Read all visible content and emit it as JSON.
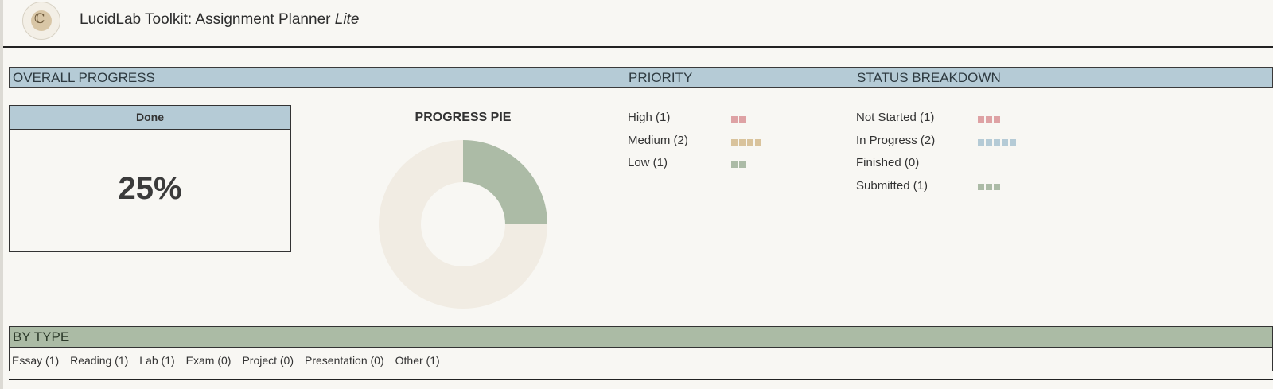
{
  "app": {
    "title": "LucidLab Toolkit: Assignment Planner",
    "title_suffix": "Lite"
  },
  "sections": {
    "overall_progress": "OVERALL PROGRESS",
    "priority": "PRIORITY",
    "status_breakdown": "STATUS BREAKDOWN",
    "by_type": "BY TYPE"
  },
  "done_card": {
    "label": "Done",
    "value": "25%"
  },
  "pie": {
    "title": "PROGRESS PIE",
    "done_fraction": 0.25,
    "done_color": "#acbba6",
    "remaining_color": "#f1ece3"
  },
  "priority": [
    {
      "label": "High (1)",
      "blocks": 2,
      "color": "#dea2a4"
    },
    {
      "label": "Medium (2)",
      "blocks": 4,
      "color": "#d9c39c"
    },
    {
      "label": "Low (1)",
      "blocks": 2,
      "color": "#acbba6"
    }
  ],
  "status": [
    {
      "label": "Not Started (1)",
      "blocks": 3,
      "color": "#dea2a4"
    },
    {
      "label": "In Progress (2)",
      "blocks": 5,
      "color": "#b5cbd6"
    },
    {
      "label": "Finished (0)",
      "blocks": 0,
      "color": "#acbba6"
    },
    {
      "label": "Submitted (1)",
      "blocks": 3,
      "color": "#acbba6"
    }
  ],
  "types": [
    "Essay (1)",
    "Reading (1)",
    "Lab (1)",
    "Exam (0)",
    "Project (0)",
    "Presentation (0)",
    "Other (1)"
  ]
}
